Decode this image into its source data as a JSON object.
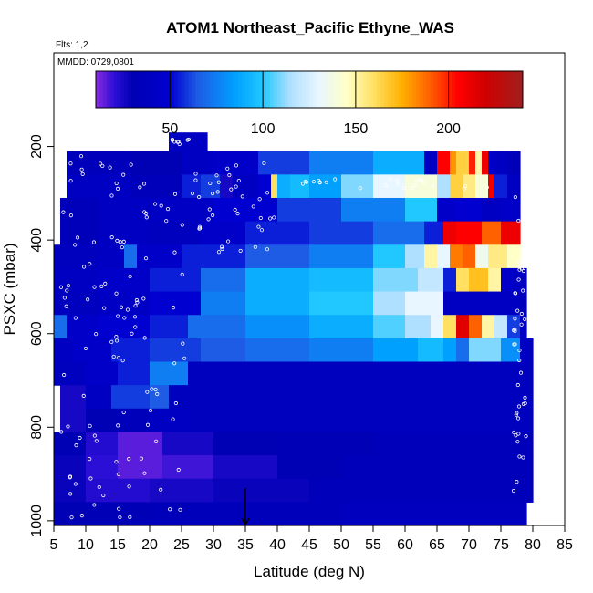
{
  "chart_data": {
    "type": "heatmap",
    "title": "ATOM1 Northeast_Pacific Ethyne_WAS",
    "flights_label": "Flts: 1,2",
    "date_label": "MMDD: 0729,0801",
    "xlabel": "Latitude (deg N)",
    "ylabel": "PSXC (mbar)",
    "xlim": [
      5,
      85
    ],
    "ylim": [
      1010,
      0
    ],
    "x_ticks": [
      "5",
      "10",
      "15",
      "20",
      "25",
      "30",
      "35",
      "40",
      "45",
      "50",
      "55",
      "60",
      "65",
      "70",
      "75",
      "80",
      "85"
    ],
    "y_ticks": [
      "200",
      "400",
      "600",
      "800",
      "1000"
    ],
    "colorbar": {
      "min": 10,
      "max": 240,
      "ticks": [
        "50",
        "100",
        "150",
        "200"
      ],
      "stops": [
        [
          10,
          "#8a2be2"
        ],
        [
          20,
          "#2c0fd6"
        ],
        [
          30,
          "#0000b4"
        ],
        [
          50,
          "#0000d0"
        ],
        [
          65,
          "#1e5ce6"
        ],
        [
          85,
          "#00a0ff"
        ],
        [
          100,
          "#20c8ff"
        ],
        [
          115,
          "#b0e0ff"
        ],
        [
          130,
          "#e8f6ff"
        ],
        [
          145,
          "#ffffc8"
        ],
        [
          160,
          "#ffe060"
        ],
        [
          175,
          "#ffb000"
        ],
        [
          190,
          "#ff6000"
        ],
        [
          205,
          "#ff0000"
        ],
        [
          220,
          "#d00000"
        ],
        [
          240,
          "#a02020"
        ]
      ]
    },
    "marker_latitude": 35,
    "pressure_bands": [
      {
        "p_top": 170,
        "p_bot": 210,
        "segments": [
          [
            23,
            29,
            40
          ]
        ]
      },
      {
        "p_top": 210,
        "p_bot": 260,
        "segments": [
          [
            7,
            17,
            35
          ],
          [
            17,
            25,
            30
          ],
          [
            25,
            30,
            40
          ],
          [
            30,
            37,
            45
          ],
          [
            37,
            45,
            60
          ],
          [
            45,
            55,
            75
          ],
          [
            55,
            63,
            90
          ],
          [
            63,
            65,
            40
          ],
          [
            65,
            67,
            205
          ],
          [
            67,
            68,
            180
          ],
          [
            68,
            70,
            165
          ],
          [
            70,
            71,
            200
          ],
          [
            71,
            72,
            150
          ],
          [
            72,
            73,
            210
          ],
          [
            73,
            74,
            45
          ],
          [
            74,
            76,
            40
          ],
          [
            76,
            78,
            35
          ]
        ]
      },
      {
        "p_top": 260,
        "p_bot": 310,
        "segments": [
          [
            7,
            17,
            40
          ],
          [
            17,
            25,
            35
          ],
          [
            25,
            28,
            55
          ],
          [
            28,
            31,
            60
          ],
          [
            31,
            33,
            25
          ],
          [
            33,
            37,
            40
          ],
          [
            37,
            39,
            50
          ],
          [
            39,
            40,
            160
          ],
          [
            40,
            42,
            90
          ],
          [
            42,
            45,
            95
          ],
          [
            45,
            50,
            85
          ],
          [
            50,
            55,
            110
          ],
          [
            55,
            60,
            130
          ],
          [
            60,
            65,
            140
          ],
          [
            65,
            67,
            115
          ],
          [
            67,
            69,
            165
          ],
          [
            69,
            71,
            155
          ],
          [
            71,
            73,
            140
          ],
          [
            73,
            74,
            210
          ],
          [
            74,
            76,
            55
          ],
          [
            76,
            78,
            40
          ]
        ]
      },
      {
        "p_top": 310,
        "p_bot": 360,
        "segments": [
          [
            6,
            12,
            35
          ],
          [
            12,
            20,
            40
          ],
          [
            20,
            30,
            42
          ],
          [
            30,
            40,
            50
          ],
          [
            40,
            50,
            60
          ],
          [
            50,
            60,
            75
          ],
          [
            60,
            65,
            100
          ],
          [
            65,
            68,
            45
          ],
          [
            68,
            72,
            50
          ],
          [
            72,
            75,
            40
          ],
          [
            75,
            78,
            45
          ]
        ]
      },
      {
        "p_top": 360,
        "p_bot": 410,
        "segments": [
          [
            6,
            12,
            35
          ],
          [
            12,
            20,
            40
          ],
          [
            20,
            28,
            38
          ],
          [
            28,
            35,
            45
          ],
          [
            35,
            45,
            55
          ],
          [
            45,
            55,
            60
          ],
          [
            55,
            63,
            70
          ],
          [
            63,
            66,
            55
          ],
          [
            66,
            68,
            210
          ],
          [
            68,
            72,
            205
          ],
          [
            72,
            75,
            190
          ],
          [
            75,
            78,
            210
          ]
        ]
      },
      {
        "p_top": 410,
        "p_bot": 460,
        "segments": [
          [
            5,
            12,
            38
          ],
          [
            12,
            16,
            40
          ],
          [
            16,
            18,
            70
          ],
          [
            18,
            25,
            45
          ],
          [
            25,
            35,
            55
          ],
          [
            35,
            45,
            65
          ],
          [
            45,
            55,
            75
          ],
          [
            55,
            60,
            100
          ],
          [
            60,
            63,
            115
          ],
          [
            63,
            65,
            150
          ],
          [
            65,
            67,
            130
          ],
          [
            67,
            69,
            185
          ],
          [
            69,
            71,
            190
          ],
          [
            71,
            73,
            135
          ],
          [
            73,
            76,
            155
          ],
          [
            76,
            78,
            145
          ]
        ]
      },
      {
        "p_top": 460,
        "p_bot": 510,
        "segments": [
          [
            5,
            12,
            40
          ],
          [
            12,
            20,
            45
          ],
          [
            20,
            28,
            55
          ],
          [
            28,
            35,
            70
          ],
          [
            35,
            45,
            90
          ],
          [
            45,
            55,
            95
          ],
          [
            55,
            62,
            110
          ],
          [
            62,
            66,
            120
          ],
          [
            66,
            68,
            55
          ],
          [
            68,
            70,
            160
          ],
          [
            70,
            73,
            170
          ],
          [
            73,
            75,
            150
          ],
          [
            75,
            77,
            45
          ],
          [
            77,
            79,
            40
          ]
        ]
      },
      {
        "p_top": 510,
        "p_bot": 560,
        "segments": [
          [
            5,
            12,
            38
          ],
          [
            12,
            20,
            42
          ],
          [
            20,
            28,
            50
          ],
          [
            28,
            35,
            75
          ],
          [
            35,
            45,
            90
          ],
          [
            45,
            55,
            100
          ],
          [
            55,
            60,
            115
          ],
          [
            60,
            66,
            130
          ],
          [
            66,
            78,
            40
          ],
          [
            78,
            79,
            35
          ]
        ]
      },
      {
        "p_top": 560,
        "p_bot": 610,
        "segments": [
          [
            5,
            7,
            70
          ],
          [
            7,
            12,
            45
          ],
          [
            12,
            20,
            50
          ],
          [
            20,
            26,
            55
          ],
          [
            26,
            35,
            70
          ],
          [
            35,
            45,
            80
          ],
          [
            45,
            55,
            90
          ],
          [
            55,
            60,
            105
          ],
          [
            60,
            64,
            115
          ],
          [
            64,
            66,
            130
          ],
          [
            66,
            68,
            160
          ],
          [
            68,
            70,
            215
          ],
          [
            70,
            72,
            190
          ],
          [
            72,
            74,
            150
          ],
          [
            74,
            76,
            120
          ],
          [
            76,
            78,
            60
          ],
          [
            78,
            79,
            40
          ]
        ]
      },
      {
        "p_top": 610,
        "p_bot": 660,
        "segments": [
          [
            5,
            8,
            40
          ],
          [
            8,
            14,
            45
          ],
          [
            14,
            20,
            55
          ],
          [
            20,
            28,
            60
          ],
          [
            28,
            35,
            65
          ],
          [
            35,
            45,
            70
          ],
          [
            45,
            55,
            75
          ],
          [
            55,
            62,
            85
          ],
          [
            62,
            66,
            95
          ],
          [
            66,
            68,
            85
          ],
          [
            68,
            70,
            70
          ],
          [
            70,
            75,
            110
          ],
          [
            75,
            78,
            80
          ],
          [
            78,
            80,
            40
          ]
        ]
      },
      {
        "p_top": 660,
        "p_bot": 710,
        "segments": [
          [
            5,
            10,
            38
          ],
          [
            10,
            15,
            45
          ],
          [
            15,
            20,
            55
          ],
          [
            20,
            26,
            75
          ],
          [
            26,
            80,
            38
          ]
        ]
      },
      {
        "p_top": 710,
        "p_bot": 760,
        "segments": [
          [
            6,
            10,
            25
          ],
          [
            10,
            14,
            40
          ],
          [
            14,
            20,
            60
          ],
          [
            20,
            23,
            65
          ],
          [
            23,
            80,
            38
          ]
        ]
      },
      {
        "p_top": 760,
        "p_bot": 810,
        "segments": [
          [
            6,
            10,
            25
          ],
          [
            10,
            15,
            30
          ],
          [
            15,
            20,
            35
          ],
          [
            20,
            26,
            40
          ],
          [
            26,
            80,
            38
          ]
        ]
      },
      {
        "p_top": 810,
        "p_bot": 860,
        "segments": [
          [
            5,
            10,
            30
          ],
          [
            10,
            15,
            22
          ],
          [
            15,
            22,
            15
          ],
          [
            22,
            30,
            25
          ],
          [
            30,
            40,
            30
          ],
          [
            40,
            55,
            32
          ],
          [
            55,
            80,
            35
          ]
        ]
      },
      {
        "p_top": 860,
        "p_bot": 910,
        "segments": [
          [
            5,
            10,
            28
          ],
          [
            10,
            15,
            20
          ],
          [
            15,
            22,
            15
          ],
          [
            22,
            30,
            18
          ],
          [
            30,
            40,
            25
          ],
          [
            40,
            50,
            30
          ],
          [
            50,
            80,
            35
          ]
        ]
      },
      {
        "p_top": 910,
        "p_bot": 960,
        "segments": [
          [
            5,
            10,
            28
          ],
          [
            10,
            20,
            22
          ],
          [
            20,
            30,
            25
          ],
          [
            30,
            45,
            28
          ],
          [
            45,
            80,
            35
          ]
        ]
      },
      {
        "p_top": 960,
        "p_bot": 1010,
        "segments": [
          [
            5,
            10,
            30
          ],
          [
            10,
            20,
            32
          ],
          [
            20,
            30,
            35
          ],
          [
            30,
            50,
            35
          ],
          [
            50,
            79,
            37
          ]
        ]
      }
    ]
  }
}
